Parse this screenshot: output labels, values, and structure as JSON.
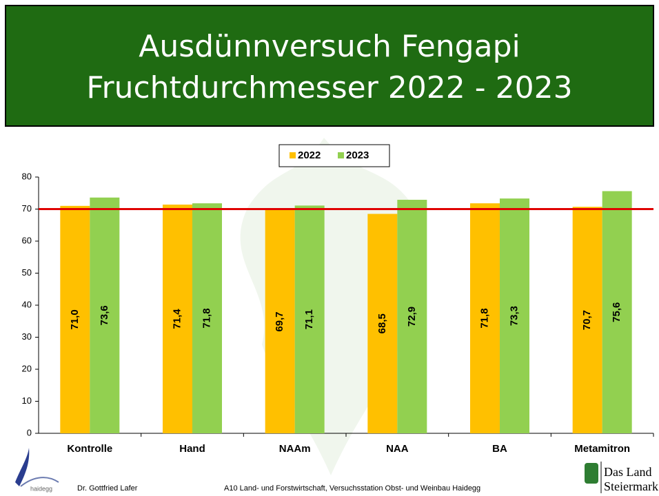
{
  "chart_data": {
    "type": "bar",
    "title": [
      "Ausdünnversuch Fengapi",
      "Fruchtdurchmesser 2022 - 2023"
    ],
    "categories": [
      "Kontrolle",
      "Hand",
      "NAAm",
      "NAA",
      "BA",
      "Metamitron"
    ],
    "series": [
      {
        "name": "2022",
        "color": "#ffc000",
        "values": [
          71.0,
          71.4,
          69.7,
          68.5,
          71.8,
          70.7
        ],
        "value_labels": [
          "71,0",
          "71,4",
          "69,7",
          "68,5",
          "71,8",
          "70,7"
        ]
      },
      {
        "name": "2023",
        "color": "#92d050",
        "values": [
          73.6,
          71.8,
          71.1,
          72.9,
          73.3,
          75.6
        ],
        "value_labels": [
          "73,6",
          "71,8",
          "71,1",
          "72,9",
          "73,3",
          "75,6"
        ]
      }
    ],
    "reference_line": 70,
    "reference_color": "#e00000",
    "ylim": [
      0,
      80
    ],
    "yticks": [
      0,
      10,
      20,
      30,
      40,
      50,
      60,
      70,
      80
    ],
    "grid": false,
    "legend": "top"
  },
  "footer": {
    "logo": "haidegg",
    "author": "Dr. Gottfried Lafer",
    "institution": "A10 Land- und Forstwirtschaft, Versuchsstation Obst- und Weinbau Haidegg",
    "brand": [
      "Das Land",
      "Steiermark"
    ]
  }
}
